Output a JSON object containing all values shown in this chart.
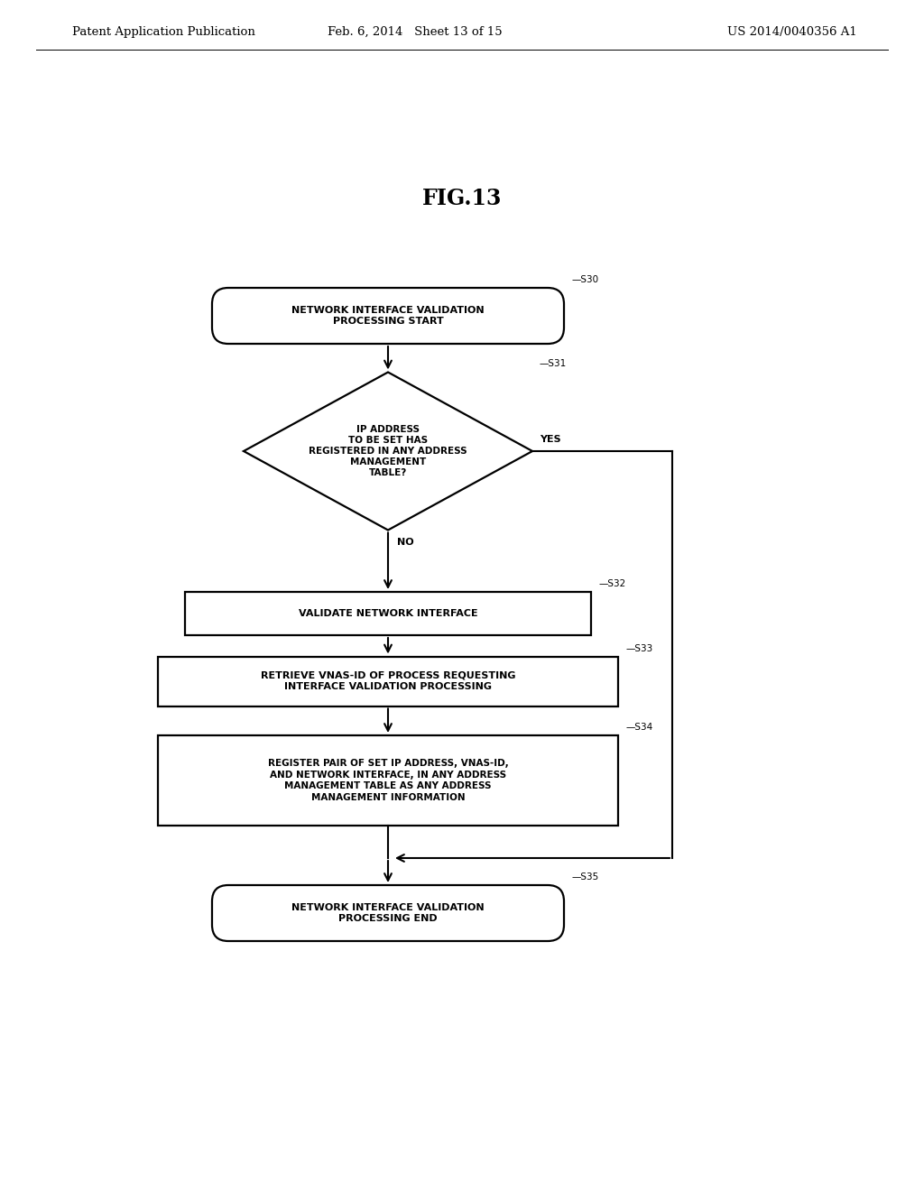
{
  "bg_color": "#ffffff",
  "header_left": "Patent Application Publication",
  "header_mid": "Feb. 6, 2014   Sheet 13 of 15",
  "header_right": "US 2014/0040356 A1",
  "fig_title": "FIG.13",
  "S30_label": "NETWORK INTERFACE VALIDATION\nPROCESSING START",
  "S31_label": "IP ADDRESS\nTO BE SET HAS\nREGISTERED IN ANY ADDRESS\nMANAGEMENT\nTABLE?",
  "S32_label": "VALIDATE NETWORK INTERFACE",
  "S33_label": "RETRIEVE VNAS-ID OF PROCESS REQUESTING\nINTERFACE VALIDATION PROCESSING",
  "S34_label": "REGISTER PAIR OF SET IP ADDRESS, VNAS-ID,\nAND NETWORK INTERFACE, IN ANY ADDRESS\nMANAGEMENT TABLE AS ANY ADDRESS\nMANAGEMENT INFORMATION",
  "S35_label": "NETWORK INTERFACE VALIDATION\nPROCESSING END",
  "yes_label": "YES",
  "no_label": "NO",
  "label_fontsize": 8.0,
  "header_fontsize": 9.5,
  "title_fontsize": 17,
  "step_fontsize": 7.5
}
